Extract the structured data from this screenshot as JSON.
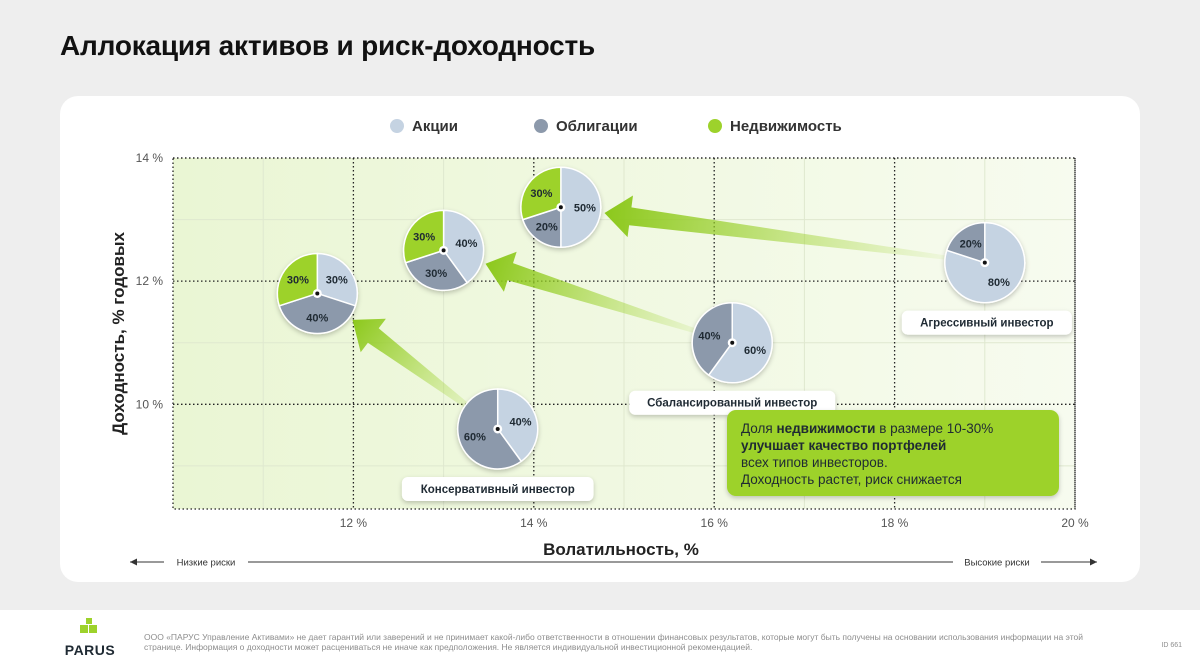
{
  "page": {
    "title": "Аллокация активов и риск-доходность"
  },
  "chart_data": {
    "type": "scatter",
    "subtype": "pie-markers",
    "xlabel": "Волатильность, %",
    "ylabel": "Доходность, % годовых",
    "xlim": [
      10,
      20
    ],
    "ylim": [
      8.3,
      14
    ],
    "x_ticks": [
      {
        "value": 12,
        "label": "12 %"
      },
      {
        "value": 14,
        "label": "14 %"
      },
      {
        "value": 16,
        "label": "16 %"
      },
      {
        "value": 18,
        "label": "18 %"
      },
      {
        "value": 20,
        "label": "20 %"
      }
    ],
    "y_ticks": [
      {
        "value": 10,
        "label": "10 %"
      },
      {
        "value": 12,
        "label": "12 %"
      },
      {
        "value": 14,
        "label": "14 %"
      }
    ],
    "grid": true,
    "legend_position": "top-center",
    "legend": [
      {
        "name": "Акции",
        "color": "#c5d3e2"
      },
      {
        "name": "Облигации",
        "color": "#8c99ab"
      },
      {
        "name": "Недвижимость",
        "color": "#9dd22b"
      }
    ],
    "series": [
      {
        "name": "Консервативный инвестор",
        "x": 13.6,
        "y": 9.6,
        "shares": {
          "Акции": 40,
          "Облигации": 60,
          "Недвижимость": 0
        }
      },
      {
        "name": "Сбалансированный инвестор",
        "x": 16.2,
        "y": 11.0,
        "shares": {
          "Акции": 60,
          "Облигации": 40,
          "Недвижимость": 0
        }
      },
      {
        "name": "Агрессивный инвестор",
        "x": 19.0,
        "y": 12.3,
        "shares": {
          "Акции": 80,
          "Облигации": 20,
          "Недвижимость": 0
        }
      },
      {
        "name": "",
        "x": 11.6,
        "y": 11.8,
        "shares": {
          "Акции": 30,
          "Облигации": 40,
          "Недвижимость": 30
        }
      },
      {
        "name": "",
        "x": 13.0,
        "y": 12.5,
        "shares": {
          "Акции": 40,
          "Облигации": 30,
          "Недвижимость": 30
        }
      },
      {
        "name": "",
        "x": 14.3,
        "y": 13.2,
        "shares": {
          "Акции": 50,
          "Облигации": 20,
          "Недвижимость": 30
        }
      }
    ],
    "transitions": [
      {
        "from": 0,
        "to": 3
      },
      {
        "from": 1,
        "to": 4
      },
      {
        "from": 2,
        "to": 5
      }
    ],
    "risk_scale": {
      "left": "Низкие риски",
      "right": "Высокие риски"
    },
    "callout": {
      "part1": "Доля ",
      "part2": "недвижимости",
      "part3": " в размере 10-30%",
      "line2": "улучшает качество портфелей",
      "line3": "всех типов инвесторов.",
      "line4": "Доходность растет, риск снижается"
    },
    "colors": {
      "accent": "#9dd22b",
      "plot_bg": "#f1f8e2",
      "label_dark": "#1f2a33"
    }
  },
  "footer": {
    "logo_text": "PARUS",
    "disclaimer": "ООО «ПАРУС Управление Активами» не дает гарантий или заверений и не принимает какой-либо ответственности в отношении финансовых результатов, которые могут быть получены на основании использования информации на этой странице. Информация о доходности может расцениваться не иначе как предположения. Не является индивидуальной инвестиционной рекомендацией.",
    "doc_id": "ID 661"
  }
}
